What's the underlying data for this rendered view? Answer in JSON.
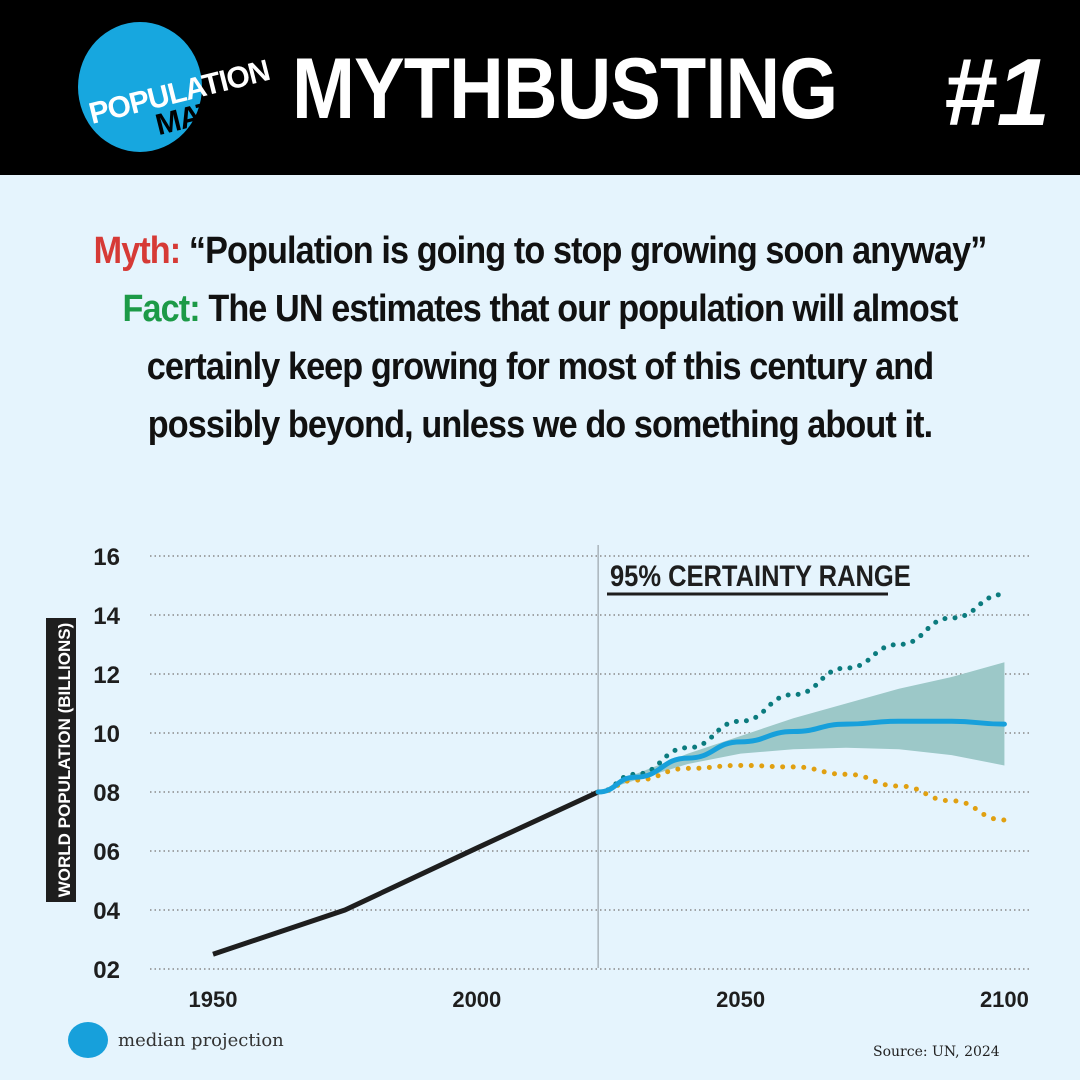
{
  "header": {
    "logo": "POPULATION MATTERS",
    "title": "MYTHBUSTING",
    "number": "#1"
  },
  "myth": {
    "label": "Myth:",
    "text": "“Population is going to stop growing soon anyway”"
  },
  "fact": {
    "label": "Fact:",
    "text": "The UN estimates that our population will almost certainly keep growing for most of this century and possibly beyond, unless we do something about it."
  },
  "colors": {
    "myth": "#d63a36",
    "fact": "#1c9a47",
    "median": "#17a0db",
    "band": "#9cc8c8",
    "upper": "#0b7b7e",
    "lower": "#e0a011",
    "history": "#1e1e1e"
  },
  "chart_data": {
    "type": "line",
    "ylabel": "WORLD POPULATION (BILLIONS)",
    "annotation": "95% CERTAINTY RANGE",
    "xlim": [
      1940,
      2105
    ],
    "ylim": [
      2,
      16
    ],
    "xticks": [
      "1950",
      "2000",
      "2050",
      "2100"
    ],
    "yticks": [
      "16",
      "14",
      "12",
      "10",
      "08",
      "06",
      "04",
      "02"
    ],
    "grid": true,
    "divider_year": 2023,
    "legend": {
      "label": "median projection",
      "placement": "bottom-left"
    },
    "source": "Source: UN, 2024",
    "series": [
      {
        "key": "history",
        "x": [
          1950,
          1975,
          2000,
          2023
        ],
        "y": [
          2.5,
          4.0,
          6.1,
          8.0
        ]
      },
      {
        "key": "median",
        "name": "median projection",
        "x": [
          2023,
          2030,
          2040,
          2050,
          2060,
          2070,
          2080,
          2090,
          2100
        ],
        "y": [
          8.0,
          8.5,
          9.15,
          9.7,
          10.05,
          10.3,
          10.4,
          10.4,
          10.3
        ]
      },
      {
        "key": "band_upper",
        "x": [
          2023,
          2030,
          2040,
          2050,
          2060,
          2070,
          2080,
          2090,
          2100
        ],
        "y": [
          8.0,
          8.6,
          9.3,
          9.9,
          10.5,
          11.0,
          11.5,
          11.9,
          12.4
        ]
      },
      {
        "key": "band_lower",
        "x": [
          2023,
          2030,
          2040,
          2050,
          2060,
          2070,
          2080,
          2090,
          2100
        ],
        "y": [
          8.0,
          8.4,
          8.95,
          9.3,
          9.45,
          9.5,
          9.45,
          9.25,
          8.9
        ]
      },
      {
        "key": "upper",
        "x": [
          2023,
          2030,
          2040,
          2050,
          2060,
          2070,
          2080,
          2090,
          2100
        ],
        "y": [
          8.0,
          8.6,
          9.5,
          10.4,
          11.3,
          12.2,
          13.0,
          13.9,
          14.7
        ]
      },
      {
        "key": "lower",
        "x": [
          2023,
          2030,
          2040,
          2050,
          2060,
          2070,
          2080,
          2090,
          2100
        ],
        "y": [
          8.0,
          8.4,
          8.8,
          8.9,
          8.85,
          8.6,
          8.2,
          7.7,
          7.05
        ]
      }
    ]
  }
}
